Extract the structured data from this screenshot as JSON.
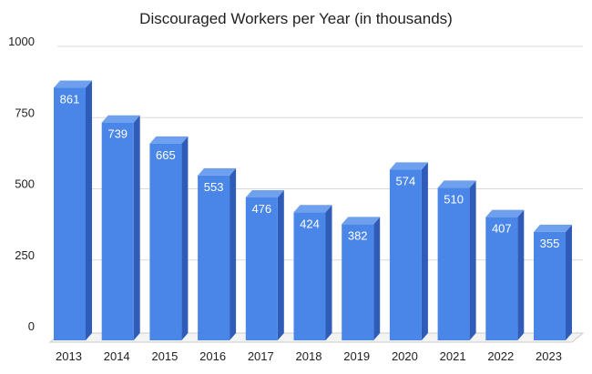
{
  "chart_data": {
    "type": "bar",
    "title": "Discouraged Workers per Year (in thousands)",
    "xlabel": "",
    "ylabel": "",
    "categories": [
      "2013",
      "2014",
      "2015",
      "2016",
      "2017",
      "2018",
      "2019",
      "2020",
      "2021",
      "2022",
      "2023"
    ],
    "values": [
      861,
      739,
      665,
      553,
      476,
      424,
      382,
      574,
      510,
      407,
      355
    ],
    "data_labels": [
      "861",
      "739",
      "665",
      "553",
      "476",
      "424",
      "382",
      "574",
      "510",
      "407",
      "355"
    ],
    "ylim": [
      0,
      1000
    ],
    "yticks": [
      0,
      250,
      500,
      750,
      1000
    ],
    "ytick_labels": [
      "0",
      "250",
      "500",
      "750",
      "1000"
    ],
    "grid": true,
    "style": "3d-columns",
    "colors": {
      "bar_front": "#4a86e8",
      "bar_top": "#6fa0ee",
      "bar_side": "#2f5cb8",
      "grid": "#d9d9d9",
      "floor": "#cccccc"
    }
  }
}
